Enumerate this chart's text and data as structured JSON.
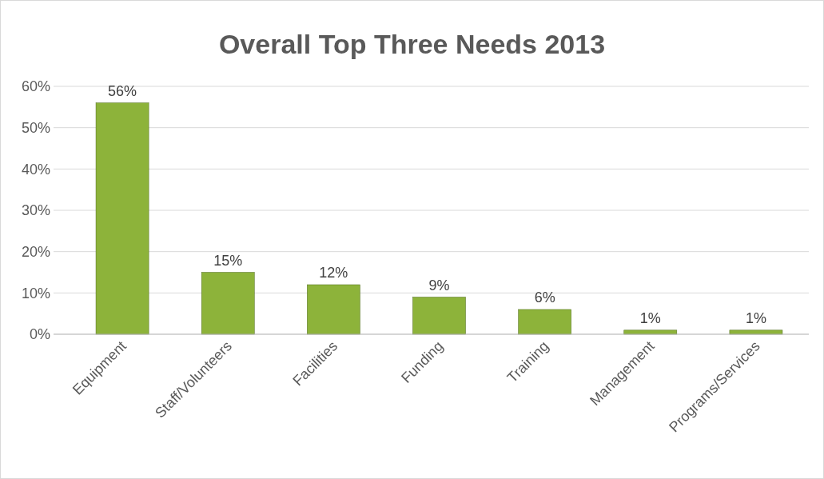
{
  "chart_data": {
    "type": "bar",
    "title": "Overall Top Three Needs 2013",
    "categories": [
      "Equipment",
      "Staff/Volunteers",
      "Facilities",
      "Funding",
      "Training",
      "Management",
      "Programs/Services"
    ],
    "values": [
      56,
      15,
      12,
      9,
      6,
      1,
      1
    ],
    "value_labels": [
      "56%",
      "15%",
      "12%",
      "9%",
      "6%",
      "1%",
      "1%"
    ],
    "color": "#8db33a",
    "ylim": [
      0,
      60
    ],
    "yticks": [
      {
        "value": 0,
        "label": "0%"
      },
      {
        "value": 10,
        "label": "10%"
      },
      {
        "value": 20,
        "label": "20%"
      },
      {
        "value": 30,
        "label": "30%"
      },
      {
        "value": 40,
        "label": "40%"
      },
      {
        "value": 50,
        "label": "50%"
      },
      {
        "value": 60,
        "label": "60%"
      }
    ],
    "grid": true
  }
}
